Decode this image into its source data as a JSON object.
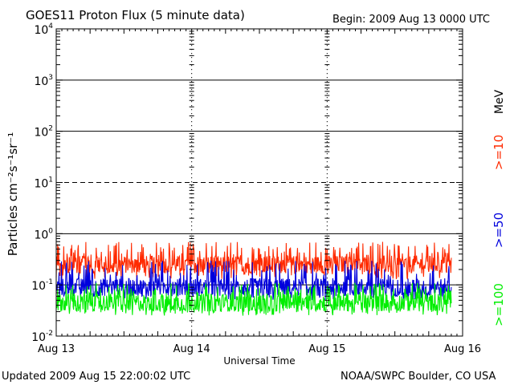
{
  "header": {
    "title": "GOES11 Proton Flux (5 minute data)",
    "begin": "Begin: 2009 Aug 13 0000 UTC"
  },
  "footer": {
    "updated": "Updated 2009 Aug 15 22:00:02 UTC",
    "credit": "NOAA/SWPC Boulder, CO USA"
  },
  "right_labels": {
    "unit": "MeV",
    "ge10": ">=10",
    "ge50": ">=50",
    "ge100": ">=100"
  },
  "colors": {
    "ge10": "#ff2a00",
    "ge50": "#0000dd",
    "ge100": "#00ee00",
    "axes": "#000000"
  },
  "chart_data": {
    "type": "line",
    "title": "GOES11 Proton Flux (5 minute data)",
    "xlabel": "Universal Time",
    "ylabel": "Particles cm⁻²s⁻¹sr⁻¹",
    "yscale": "log",
    "ylim": [
      0.01,
      10000
    ],
    "xlim": [
      "2009-08-13 00:00",
      "2009-08-16 00:00"
    ],
    "x_ticks": [
      "Aug 13",
      "Aug 14",
      "Aug 15",
      "Aug 16"
    ],
    "y_ticks": [
      {
        "base": "10",
        "exp": "4"
      },
      {
        "base": "10",
        "exp": "3"
      },
      {
        "base": "10",
        "exp": "2"
      },
      {
        "base": "10",
        "exp": "1"
      },
      {
        "base": "10",
        "exp": "0"
      },
      {
        "base": "10",
        "exp": "-1"
      },
      {
        "base": "10",
        "exp": "-2"
      }
    ],
    "data_end": "2009-08-15 22:00",
    "grid": "solid lines at 10^3, 10^2, 10^0, 10^-1; dashed at 10^1; dashed vertical day separators",
    "series": [
      {
        "name": ">=10 MeV",
        "color": "#ff2a00",
        "typical": 0.25,
        "min": 0.13,
        "max": 0.7
      },
      {
        "name": ">=50 MeV",
        "color": "#0000dd",
        "typical": 0.09,
        "min": 0.05,
        "max": 0.3
      },
      {
        "name": ">=100 MeV",
        "color": "#00ee00",
        "typical": 0.045,
        "min": 0.025,
        "max": 0.11
      }
    ]
  }
}
